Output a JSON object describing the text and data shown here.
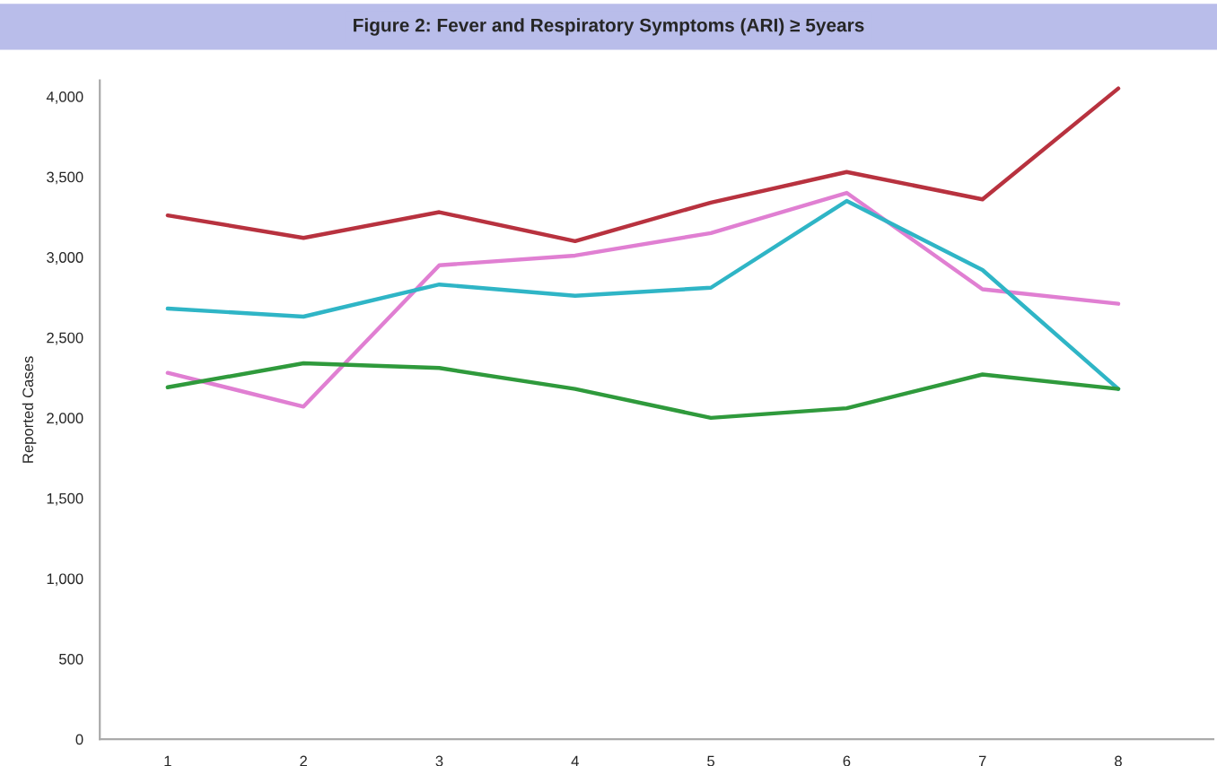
{
  "chart_data": {
    "type": "line",
    "title": "Figure 2: Fever and Respiratory Symptoms (ARI) ≥ 5years",
    "ylabel": "Reported Cases",
    "categories": [
      "1",
      "2",
      "3",
      "4",
      "5",
      "6",
      "7",
      "8"
    ],
    "series": [
      {
        "color": "#b8323f",
        "values": [
          3260,
          3120,
          3280,
          3100,
          3340,
          3530,
          3360,
          4050
        ]
      },
      {
        "color": "#e07fd2",
        "values": [
          2280,
          2070,
          2950,
          3010,
          3150,
          3400,
          2800,
          2710
        ]
      },
      {
        "color": "#2fb5c6",
        "values": [
          2680,
          2630,
          2830,
          2760,
          2810,
          3350,
          2920,
          2180
        ]
      },
      {
        "color": "#2f9a3c",
        "values": [
          2190,
          2340,
          2310,
          2180,
          2000,
          2060,
          2270,
          2180
        ]
      }
    ],
    "ylim": [
      0,
      4100
    ],
    "yticks": [
      {
        "value": 0,
        "label": "0"
      },
      {
        "value": 500,
        "label": "500"
      },
      {
        "value": 1000,
        "label": "1,000"
      },
      {
        "value": 1500,
        "label": "1,500"
      },
      {
        "value": 2000,
        "label": "2,000"
      },
      {
        "value": 2500,
        "label": "2,500"
      },
      {
        "value": 3000,
        "label": "3,000"
      },
      {
        "value": 3500,
        "label": "3,500"
      },
      {
        "value": 4000,
        "label": "4,000"
      }
    ],
    "grid": false,
    "legend": false,
    "marker": "none",
    "line_style": "solid"
  }
}
